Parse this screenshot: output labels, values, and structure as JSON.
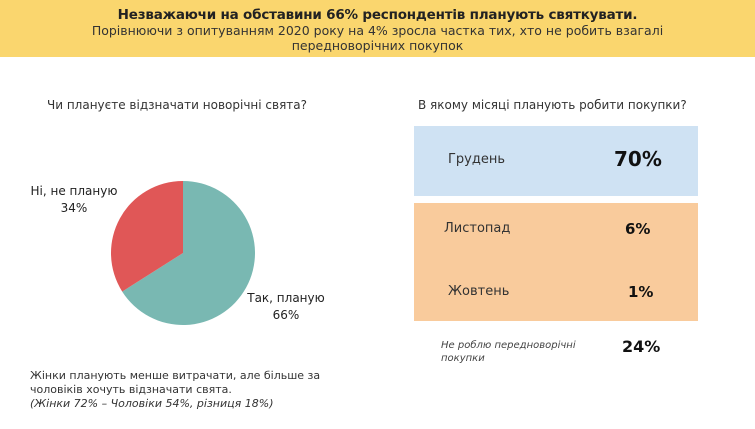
{
  "header": {
    "title": "Незважаючи на обставини 66% респондентів  планують святкувати.",
    "subtitle_line1": "Порівнюючи з опитуванням 2020 року на 4% зросла частка тих, хто не робить взагалі",
    "subtitle_line2": "передноворічних покупок"
  },
  "colors": {
    "banner": "#fad66e",
    "yes": "#79b8b2",
    "no": "#e05757",
    "december": "#cfe2f3",
    "nov_oct": "#f9cb9c"
  },
  "chart_data": [
    {
      "type": "pie",
      "title": "Чи плануєте відзначати новорічні свята?",
      "slices": [
        {
          "label": "Так, планую",
          "value": 66,
          "value_label": "66%",
          "color": "#79b8b2"
        },
        {
          "label": "Ні, не планую",
          "value": 34,
          "value_label": "34%",
          "color": "#e05757"
        }
      ]
    },
    {
      "type": "table",
      "title": "В якому місяці планують робити покупки?",
      "rows": [
        {
          "label": "Грудень",
          "value": "70%"
        },
        {
          "label": "Листопад",
          "value": "6%"
        },
        {
          "label": "Жовтень",
          "value": "1%"
        },
        {
          "label": "Не роблю передноворічні покупки",
          "value": "24%"
        }
      ]
    }
  ],
  "note": {
    "line1": "Жінки планують менше витрачати, але більше за",
    "line2": "чоловіків хочуть відзначати свята.",
    "line3": "(Жінки 72% – Чоловіки 54%, різниця 18%)"
  }
}
